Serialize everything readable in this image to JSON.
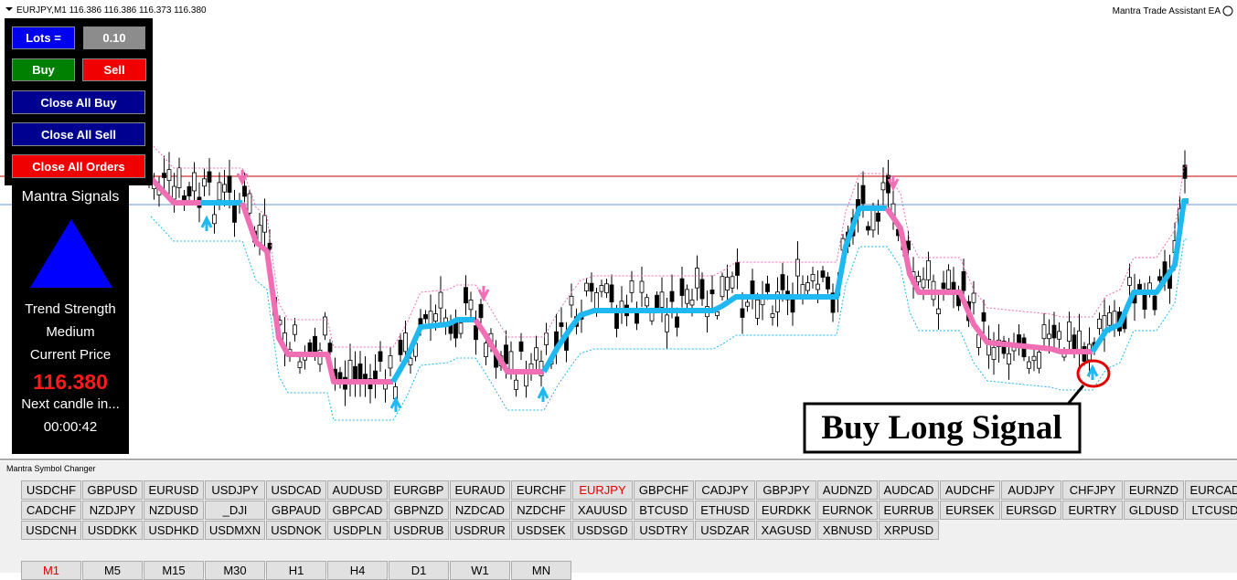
{
  "header": {
    "symbol_info": "EURJPY,M1  116.386 116.386 116.373 116.380",
    "ea_name": "Mantra Trade Assistant EA"
  },
  "panel": {
    "lots_label": "Lots =",
    "lots_value": "0.10",
    "buy": "Buy",
    "sell": "Sell",
    "close_all_buy": "Close All Buy",
    "close_all_sell": "Close All Sell",
    "close_all_orders": "Close All Orders",
    "signals_title": "Mantra Signals",
    "trend_label": "Trend Strength",
    "trend_value": "Medium",
    "price_label": "Current Price",
    "price_value": "116.380",
    "next_candle_label": "Next candle in...",
    "countdown": "00:00:42"
  },
  "annotation": "Buy Long Signal",
  "symbol_changer": {
    "title": "Mantra Symbol Changer",
    "symbols": [
      [
        "USDCHF",
        "GBPUSD",
        "EURUSD",
        "USDJPY",
        "USDCAD",
        "AUDUSD",
        "EURGBP",
        "EURAUD",
        "EURCHF",
        "EURJPY",
        "GBPCHF",
        "CADJPY",
        "GBPJPY",
        "AUDNZD",
        "AUDCAD",
        "AUDCHF",
        "AUDJPY",
        "CHFJPY",
        "EURNZD",
        "EURCAD"
      ],
      [
        "CADCHF",
        "NZDJPY",
        "NZDUSD",
        "_DJI",
        "GBPAUD",
        "GBPCAD",
        "GBPNZD",
        "NZDCAD",
        "NZDCHF",
        "XAUUSD",
        "BTCUSD",
        "ETHUSD",
        "EURDKK",
        "EURNOK",
        "EURRUB",
        "EURSEK",
        "EURSGD",
        "EURTRY",
        "GLDUSD",
        "LTCUSD"
      ],
      [
        "USDCNH",
        "USDDKK",
        "USDHKD",
        "USDMXN",
        "USDNOK",
        "USDPLN",
        "USDRUB",
        "USDRUR",
        "USDSEK",
        "USDSGD",
        "USDTRY",
        "USDZAR",
        "XAGUSD",
        "XBNUSD",
        "XRPUSD"
      ]
    ],
    "timeframes": [
      "M1",
      "M5",
      "M15",
      "M30",
      "H1",
      "H4",
      "D1",
      "W1",
      "MN"
    ]
  }
}
